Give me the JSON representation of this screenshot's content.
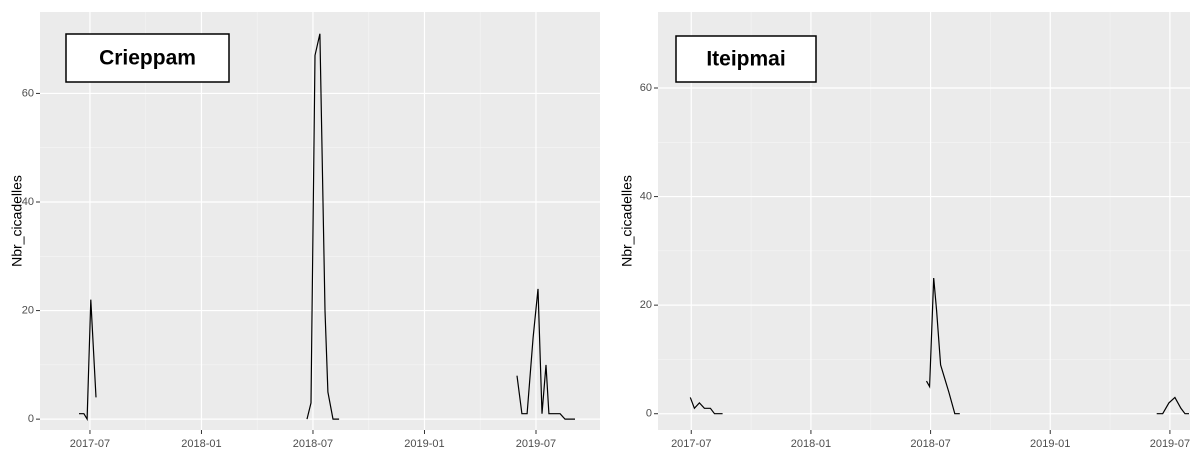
{
  "chart_data": [
    {
      "type": "line",
      "annotation": "Crieppam",
      "ylabel": "Nbr_cicadelles",
      "xlim": [
        2017.276,
        2019.787
      ],
      "ylim": [
        -2,
        75
      ],
      "xticks": [
        {
          "value": 2017.5,
          "label": "2017-07"
        },
        {
          "value": 2018.0,
          "label": "2018-01"
        },
        {
          "value": 2018.5,
          "label": "2018-07"
        },
        {
          "value": 2019.0,
          "label": "2019-01"
        },
        {
          "value": 2019.5,
          "label": "2019-07"
        }
      ],
      "yticks": [
        0,
        20,
        40,
        60
      ],
      "grid": true,
      "series": [
        {
          "color": "#000000",
          "x": [
            2017.451,
            2017.473,
            2017.487,
            2017.504,
            2017.527,
            2018.0,
            2018.473,
            2018.491,
            2018.509,
            2018.531,
            2018.554,
            2018.567,
            2018.59,
            2018.617,
            2019.0,
            2019.415,
            2019.437,
            2019.46,
            2019.487,
            2019.509,
            2019.527,
            2019.545,
            2019.558,
            2019.585,
            2019.608,
            2019.63,
            2019.675
          ],
          "values": [
            1,
            1,
            0,
            22,
            4,
            null,
            0,
            3,
            67,
            71,
            20,
            5,
            0,
            0,
            null,
            8,
            1,
            1,
            15,
            24,
            1,
            10,
            1,
            1,
            1,
            0,
            0
          ]
        }
      ]
    },
    {
      "type": "line",
      "annotation": "Iteipmai",
      "ylabel": "Nbr_cicadelles",
      "xlim": [
        2017.361,
        2019.584
      ],
      "ylim": [
        -3,
        74
      ],
      "xticks": [
        {
          "value": 2017.5,
          "label": "2017-07"
        },
        {
          "value": 2018.0,
          "label": "2018-01"
        },
        {
          "value": 2018.5,
          "label": "2018-07"
        },
        {
          "value": 2019.0,
          "label": "2019-01"
        },
        {
          "value": 2019.5,
          "label": "2019-07"
        }
      ],
      "yticks": [
        0,
        20,
        40,
        60
      ],
      "grid": true,
      "series": [
        {
          "color": "#000000",
          "x": [
            2017.496,
            2017.513,
            2017.534,
            2017.555,
            2017.58,
            2017.597,
            2017.631,
            2018.0,
            2018.483,
            2018.496,
            2018.513,
            2018.525,
            2018.542,
            2018.576,
            2018.601,
            2018.622,
            2019.0,
            2019.445,
            2019.47,
            2019.496,
            2019.521,
            2019.546,
            2019.563,
            2019.58
          ],
          "values": [
            3,
            1,
            2,
            1,
            1,
            0,
            0,
            null,
            6,
            5,
            25,
            19,
            9,
            4,
            0,
            0,
            null,
            0,
            0,
            2,
            3,
            1,
            0,
            0
          ]
        }
      ]
    }
  ]
}
